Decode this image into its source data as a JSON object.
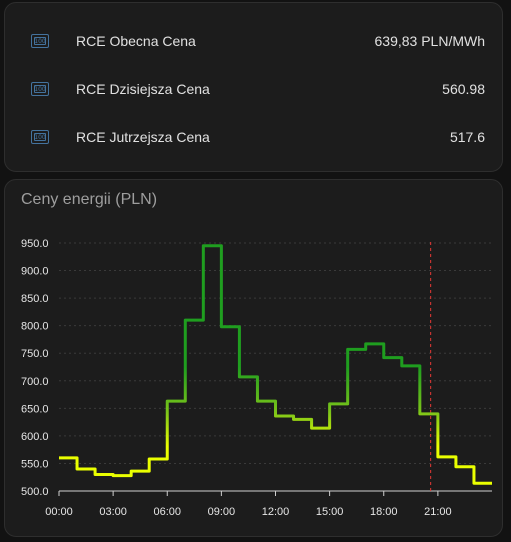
{
  "entities": [
    {
      "icon": "cash-icon",
      "icon_text": "100",
      "name": "RCE Obecna Cena",
      "state": "639,83 PLN/MWh"
    },
    {
      "icon": "cash-icon",
      "icon_text": "100",
      "name": "RCE Dzisiejsza Cena",
      "state": "560.98"
    },
    {
      "icon": "cash-icon",
      "icon_text": "100",
      "name": "RCE Jutrzejsza Cena",
      "state": "517.6"
    }
  ],
  "chart_card": {
    "title": "Ceny energii (PLN)"
  },
  "colors": {
    "icon": "#44739e",
    "line_low": "#eaff00",
    "line_high": "#1f9e1f",
    "now_marker": "#e53935",
    "grid": "#3a3a3a"
  },
  "chart_data": {
    "type": "line",
    "step": true,
    "x_unit": "hour",
    "x_ticks": [
      "00:00",
      "03:00",
      "06:00",
      "09:00",
      "12:00",
      "15:00",
      "18:00",
      "21:00"
    ],
    "y_ticks": [
      "500.0",
      "550.0",
      "600.0",
      "650.0",
      "700.0",
      "750.0",
      "800.0",
      "850.0",
      "900.0",
      "950.0"
    ],
    "xlim": [
      0,
      24
    ],
    "ylim": [
      500,
      960
    ],
    "now_hour": 20.6,
    "series": [
      {
        "x": [
          0,
          1,
          2,
          3,
          4,
          5,
          6,
          7,
          8,
          9,
          10,
          11,
          12,
          13,
          14,
          15,
          16,
          17,
          18,
          19,
          20,
          21,
          22,
          23,
          24
        ],
        "values": [
          560,
          540,
          530,
          528,
          536,
          558,
          663,
          810,
          945,
          798,
          707,
          663,
          636,
          630,
          614,
          658,
          757,
          767,
          742,
          727,
          640,
          562,
          544,
          514,
          514
        ]
      }
    ]
  }
}
